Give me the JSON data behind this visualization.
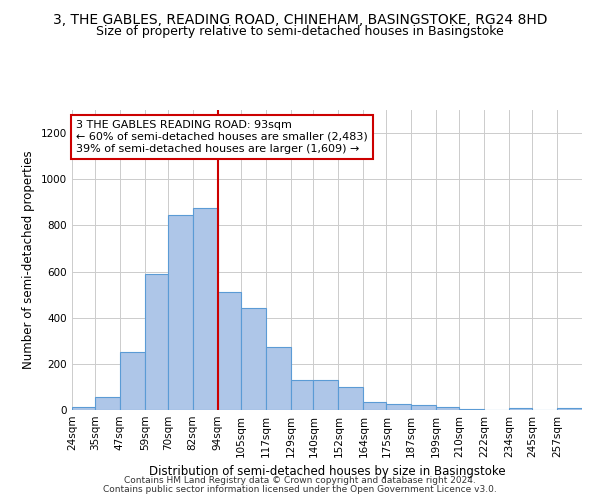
{
  "title": "3, THE GABLES, READING ROAD, CHINEHAM, BASINGSTOKE, RG24 8HD",
  "subtitle": "Size of property relative to semi-detached houses in Basingstoke",
  "xlabel": "Distribution of semi-detached houses by size in Basingstoke",
  "ylabel": "Number of semi-detached properties",
  "footnote1": "Contains HM Land Registry data © Crown copyright and database right 2024.",
  "footnote2": "Contains public sector information licensed under the Open Government Licence v3.0.",
  "bar_color": "#aec6e8",
  "bar_edge_color": "#5b9bd5",
  "vline_color": "#cc0000",
  "vline_x": 94,
  "annotation_line1": "3 THE GABLES READING ROAD: 93sqm",
  "annotation_line2": "← 60% of semi-detached houses are smaller (2,483)",
  "annotation_line3": "39% of semi-detached houses are larger (1,609) →",
  "annotation_box_color": "#cc0000",
  "categories": [
    "24sqm",
    "35sqm",
    "47sqm",
    "59sqm",
    "70sqm",
    "82sqm",
    "94sqm",
    "105sqm",
    "117sqm",
    "129sqm",
    "140sqm",
    "152sqm",
    "164sqm",
    "175sqm",
    "187sqm",
    "199sqm",
    "210sqm",
    "222sqm",
    "234sqm",
    "245sqm",
    "257sqm"
  ],
  "bin_edges": [
    24,
    35,
    47,
    59,
    70,
    82,
    94,
    105,
    117,
    129,
    140,
    152,
    164,
    175,
    187,
    199,
    210,
    222,
    234,
    245,
    257
  ],
  "bar_heights": [
    15,
    55,
    250,
    590,
    845,
    875,
    510,
    440,
    275,
    130,
    130,
    100,
    35,
    25,
    20,
    15,
    5,
    0,
    8,
    0,
    8
  ],
  "ylim": [
    0,
    1300
  ],
  "yticks": [
    0,
    200,
    400,
    600,
    800,
    1000,
    1200
  ],
  "xlim_min": 24,
  "xlim_max": 269,
  "background_color": "#ffffff",
  "grid_color": "#cccccc",
  "title_fontsize": 10,
  "subtitle_fontsize": 9,
  "axis_label_fontsize": 8.5,
  "tick_fontsize": 7.5,
  "annotation_fontsize": 8,
  "footnote_fontsize": 6.5
}
